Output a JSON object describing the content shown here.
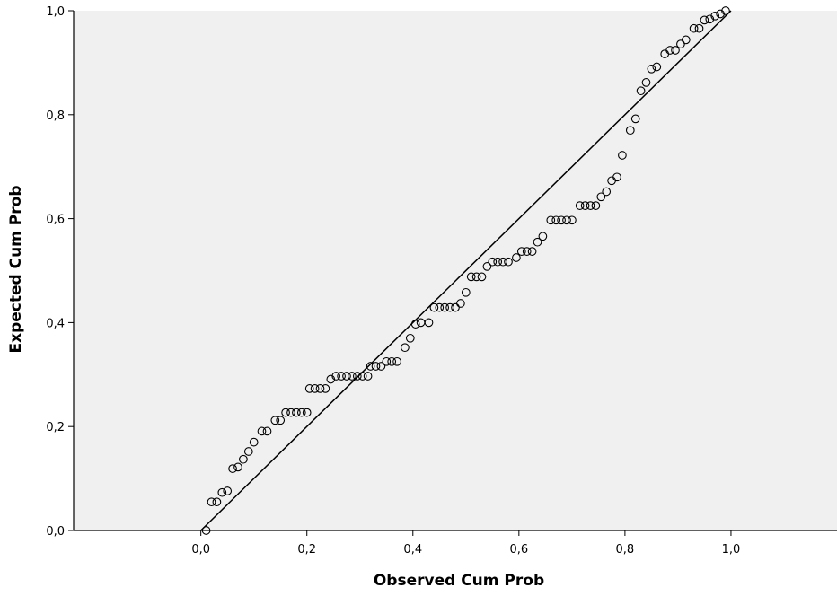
{
  "chart_data": {
    "type": "scatter",
    "title": "",
    "xlabel": "Observed Cum Prob",
    "ylabel": "Expected Cum Prob",
    "xlim": [
      -0.24,
      1.2
    ],
    "ylim": [
      0,
      1
    ],
    "x_ticks": [
      "0,0",
      "0,2",
      "0,4",
      "0,6",
      "0,8",
      "1,0"
    ],
    "x_tick_values": [
      0,
      0.2,
      0.4,
      0.6,
      0.8,
      1.0
    ],
    "y_ticks": [
      "0,0",
      "0,2",
      "0,4",
      "0,6",
      "0,8",
      "1,0"
    ],
    "y_tick_values": [
      0,
      0.2,
      0.4,
      0.6,
      0.8,
      1.0
    ],
    "reference_line": {
      "x": [
        0,
        1
      ],
      "y": [
        0,
        1
      ]
    },
    "grid": false,
    "background_color": "#f0f0f0",
    "marker_color": "#000000",
    "points": [
      [
        0.01,
        0.0
      ],
      [
        0.02,
        0.055
      ],
      [
        0.03,
        0.055
      ],
      [
        0.04,
        0.073
      ],
      [
        0.05,
        0.076
      ],
      [
        0.06,
        0.119
      ],
      [
        0.07,
        0.122
      ],
      [
        0.08,
        0.137
      ],
      [
        0.09,
        0.152
      ],
      [
        0.1,
        0.17
      ],
      [
        0.115,
        0.191
      ],
      [
        0.125,
        0.191
      ],
      [
        0.14,
        0.212
      ],
      [
        0.15,
        0.212
      ],
      [
        0.16,
        0.227
      ],
      [
        0.17,
        0.227
      ],
      [
        0.18,
        0.227
      ],
      [
        0.19,
        0.227
      ],
      [
        0.2,
        0.227
      ],
      [
        0.205,
        0.273
      ],
      [
        0.215,
        0.273
      ],
      [
        0.225,
        0.273
      ],
      [
        0.235,
        0.273
      ],
      [
        0.245,
        0.291
      ],
      [
        0.255,
        0.297
      ],
      [
        0.265,
        0.297
      ],
      [
        0.275,
        0.297
      ],
      [
        0.285,
        0.297
      ],
      [
        0.295,
        0.297
      ],
      [
        0.305,
        0.297
      ],
      [
        0.315,
        0.297
      ],
      [
        0.32,
        0.316
      ],
      [
        0.33,
        0.316
      ],
      [
        0.34,
        0.316
      ],
      [
        0.35,
        0.325
      ],
      [
        0.36,
        0.325
      ],
      [
        0.37,
        0.325
      ],
      [
        0.385,
        0.352
      ],
      [
        0.395,
        0.37
      ],
      [
        0.405,
        0.397
      ],
      [
        0.415,
        0.4
      ],
      [
        0.43,
        0.4
      ],
      [
        0.44,
        0.429
      ],
      [
        0.45,
        0.429
      ],
      [
        0.46,
        0.429
      ],
      [
        0.47,
        0.429
      ],
      [
        0.48,
        0.429
      ],
      [
        0.49,
        0.437
      ],
      [
        0.5,
        0.458
      ],
      [
        0.51,
        0.488
      ],
      [
        0.52,
        0.488
      ],
      [
        0.53,
        0.488
      ],
      [
        0.54,
        0.508
      ],
      [
        0.55,
        0.517
      ],
      [
        0.56,
        0.517
      ],
      [
        0.57,
        0.517
      ],
      [
        0.58,
        0.517
      ],
      [
        0.595,
        0.525
      ],
      [
        0.605,
        0.537
      ],
      [
        0.615,
        0.537
      ],
      [
        0.625,
        0.537
      ],
      [
        0.635,
        0.555
      ],
      [
        0.645,
        0.566
      ],
      [
        0.66,
        0.597
      ],
      [
        0.67,
        0.597
      ],
      [
        0.68,
        0.597
      ],
      [
        0.69,
        0.597
      ],
      [
        0.7,
        0.597
      ],
      [
        0.715,
        0.625
      ],
      [
        0.725,
        0.625
      ],
      [
        0.735,
        0.625
      ],
      [
        0.745,
        0.625
      ],
      [
        0.755,
        0.642
      ],
      [
        0.765,
        0.652
      ],
      [
        0.775,
        0.673
      ],
      [
        0.785,
        0.68
      ],
      [
        0.795,
        0.722
      ],
      [
        0.81,
        0.77
      ],
      [
        0.82,
        0.792
      ],
      [
        0.83,
        0.846
      ],
      [
        0.84,
        0.862
      ],
      [
        0.85,
        0.888
      ],
      [
        0.86,
        0.892
      ],
      [
        0.875,
        0.917
      ],
      [
        0.885,
        0.924
      ],
      [
        0.895,
        0.924
      ],
      [
        0.905,
        0.936
      ],
      [
        0.915,
        0.944
      ],
      [
        0.93,
        0.966
      ],
      [
        0.94,
        0.966
      ],
      [
        0.95,
        0.982
      ],
      [
        0.96,
        0.984
      ],
      [
        0.97,
        0.99
      ],
      [
        0.98,
        0.994
      ],
      [
        0.99,
        1.0
      ]
    ]
  }
}
